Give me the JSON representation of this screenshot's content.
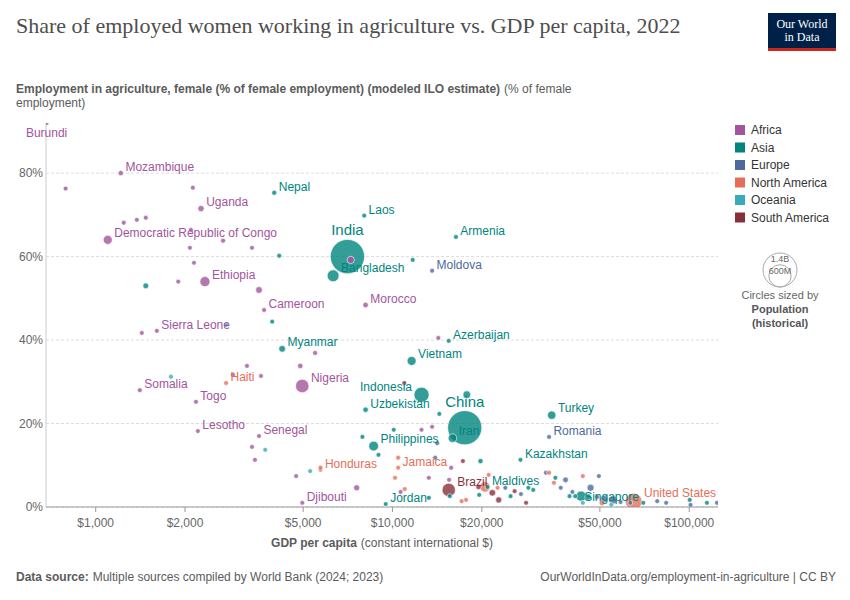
{
  "chart_data": {
    "type": "scatter",
    "title": "Share of employed women working in agriculture vs. GDP per capita, 2022",
    "y_label": "Employment in agriculture, female (% of female employment) (modeled ILO estimate)",
    "y_unit": "(% of female employment)",
    "x_label": "GDP per capita",
    "x_unit": "(constant international $)",
    "source_label": "Data source:",
    "source": "Multiple sources compiled by World Bank (2024; 2023)",
    "url": "OurWorldInData.org/employment-in-agriculture | CC BY",
    "logo": "Our World in Data",
    "log": "x",
    "grid": true,
    "legend": "right",
    "xlim": [
      680,
      125000
    ],
    "ylim": [
      0,
      92
    ],
    "xticks": [
      {
        "value": 1000,
        "label": "$1,000"
      },
      {
        "value": 2000,
        "label": "$2,000"
      },
      {
        "value": 5000,
        "label": "$5,000"
      },
      {
        "value": 10000,
        "label": "$10,000"
      },
      {
        "value": 20000,
        "label": "$20,000"
      },
      {
        "value": 50000,
        "label": "$50,000"
      },
      {
        "value": 100000,
        "label": "$100,000"
      }
    ],
    "yticks": [
      {
        "value": 0,
        "label": "0%"
      },
      {
        "value": 20,
        "label": "20%"
      },
      {
        "value": 40,
        "label": "40%"
      },
      {
        "value": 60,
        "label": "60%"
      },
      {
        "value": 80,
        "label": "80%"
      }
    ],
    "size_legend": {
      "title": "Circles sized by",
      "variable": "Population",
      "note": "(historical)",
      "values": [
        {
          "value": 1400000000,
          "label": "1.4B"
        },
        {
          "value": 600000000,
          "label": "600M"
        }
      ]
    },
    "series": [
      {
        "name": "Africa",
        "color": "#a2559c",
        "x": [
          683,
          1215,
          2264,
          1098,
          2334,
          3693,
          8117,
          1607,
          4966,
          1408,
          2177,
          2210,
          3550,
          4966,
          792,
          1243,
          1376,
          1475,
          2125,
          2093,
          2077,
          2686,
          3363,
          3550,
          1897,
          2144,
          1430,
          3233,
          2900,
          3606,
          5487,
          4890,
          7232,
          14270,
          13600,
          12530,
          13260,
          15770,
          7573,
          3363,
          3440,
          4734,
          10650,
          15520
        ],
        "values": [
          92,
          80,
          71.5,
          64,
          54,
          47.2,
          48.4,
          42.2,
          29,
          28,
          25.2,
          18.2,
          17,
          1,
          76.3,
          68.1,
          68.8,
          69.3,
          76.5,
          66.4,
          62.1,
          63.8,
          62.1,
          52,
          54,
          58.5,
          41.7,
          33.8,
          31.7,
          31.4,
          36.9,
          33.8,
          59.2,
          40.5,
          19.2,
          18.5,
          7,
          9.4,
          4.6,
          14.4,
          11.3,
          7.4,
          3.6,
          6.5
        ],
        "sizes": [
          13000000,
          33000000,
          47000000,
          99000000,
          123000000,
          28000000,
          37000000,
          8600000,
          218000000,
          17600000,
          8800000,
          2300000,
          17300000,
          1100000,
          5500000,
          19000000,
          21000000,
          20000000,
          6000000,
          5000000,
          4000000,
          30000000,
          12000000,
          54000000,
          16000000,
          14000000,
          6000000,
          8000000,
          5000000,
          4000000,
          30000000,
          34000000,
          65000000,
          3000000,
          12000000,
          6000000,
          3000000,
          2000000,
          44000000,
          6000000,
          4000000,
          2000000,
          2500000,
          1400000
        ],
        "labels": [
          "Burundi",
          "Mozambique",
          "Uganda",
          "Democratic Republic of Congo",
          "Ethiopia",
          "Cameroon",
          "Morocco",
          "Sierra Leone",
          "Nigeria",
          "Somalia",
          "Togo",
          "Lesotho",
          "Senegal",
          "Djibouti",
          null,
          null,
          null,
          null,
          null,
          null,
          null,
          null,
          null,
          null,
          null,
          null,
          null,
          null,
          null,
          null,
          null,
          null,
          null,
          null,
          null,
          null,
          null,
          null,
          null,
          null,
          null,
          null,
          null,
          null
        ]
      },
      {
        "name": "Asia",
        "color": "#00847e",
        "x": [
          3996,
          8030,
          7050,
          6310,
          16360,
          4249,
          15470,
          11600,
          12530,
          8117,
          17520,
          15930,
          34400,
          8640,
          27000,
          20900,
          9490,
          70000,
          1475,
          4153,
          3932,
          11700,
          7920,
          8970,
          10100,
          14380,
          17800,
          19800,
          28700,
          35400,
          39500,
          41300,
          43200,
          45600,
          29800,
          25000,
          13260,
          15600,
          19600,
          100400,
          114700
        ],
        "values": [
          75.3,
          69.8,
          60,
          55.4,
          64.7,
          37.9,
          39.8,
          35,
          26.9,
          23.3,
          19,
          16.5,
          22,
          14.6,
          11.3,
          4.8,
          0.7,
          1,
          53,
          60.2,
          44.4,
          59.2,
          16.8,
          12.5,
          18.5,
          22.3,
          26.9,
          11,
          4.6,
          7,
          2.6,
          2.6,
          2.6,
          2.4,
          4.1,
          2.6,
          2.2,
          2.6,
          2.9,
          1.7,
          1
        ],
        "sizes": [
          30500000,
          7500000,
          1420000000,
          171000000,
          2800000,
          54000000,
          10100000,
          98000000,
          275000000,
          35000000,
          1410000000,
          89000000,
          85000000,
          116000000,
          19600000,
          520000,
          11300000,
          5600000,
          40000000,
          6000000,
          8000000,
          4000000,
          2000000,
          3000000,
          9000000,
          5000000,
          72000000,
          33000000,
          5000000,
          4000000,
          3000000,
          4500000,
          125000000,
          51000000,
          7000000,
          2000000,
          5500000,
          17000000,
          6500000,
          2700000,
          4300000
        ],
        "labels": [
          "Nepal",
          "Laos",
          "India",
          "Bangladesh",
          "Armenia",
          "Myanmar",
          "Azerbaijan",
          "Vietnam",
          "Indonesia",
          "Uzbekistan",
          "China",
          "Iran",
          "Turkey",
          "Philippines",
          "Kazakhstan",
          "Maldives",
          "Jordan",
          "Singapore",
          null,
          null,
          null,
          null,
          null,
          null,
          null,
          null,
          null,
          null,
          null,
          null,
          null,
          null,
          null,
          null,
          null,
          null,
          null,
          null,
          null,
          null,
          null
        ]
      },
      {
        "name": "Europe",
        "color": "#4c6a9c",
        "x": [
          13600,
          33700,
          48900,
          51700,
          55300,
          58700,
          63300,
          78000,
          83600,
          101000,
          124000,
          38300,
          40400,
          32900,
          36900,
          46500,
          49600,
          24000,
          27100,
          13930,
          14150
        ],
        "values": [
          56.6,
          16.8,
          2.4,
          1.9,
          1.7,
          1.2,
          1,
          1.4,
          1,
          0.5,
          1,
          6.5,
          3.6,
          8.2,
          4.6,
          4.6,
          7.4,
          4.6,
          3.1,
          11.8,
          15.3
        ],
        "sizes": [
          2500000,
          19000000,
          10000000,
          68000000,
          84000000,
          9000000,
          17000000,
          5000000,
          5500000,
          5000000,
          650000,
          38000000,
          10000000,
          2800000,
          6500000,
          59000000,
          4000000,
          2000000,
          9500000,
          3800000,
          6800000
        ],
        "labels": [
          "Moldova",
          "Romania",
          null,
          null,
          null,
          null,
          null,
          null,
          null,
          null,
          null,
          null,
          null,
          null,
          null,
          null,
          null,
          null,
          null,
          null,
          null
        ]
      },
      {
        "name": "North America",
        "color": "#e56e5a",
        "x": [
          2750,
          5720,
          10450,
          65000,
          5720,
          10450,
          10200,
          11000,
          17100,
          17700,
          21100,
          20500,
          22600,
          33700,
          35000,
          43800,
          50800
        ],
        "values": [
          29.7,
          8.9,
          9.4,
          1.3,
          9.4,
          11.8,
          7,
          4.3,
          1.4,
          1.7,
          7.7,
          4.8,
          4.6,
          8.2,
          5.8,
          7.4,
          1
        ],
        "sizes": [
          11600000,
          10400000,
          2800000,
          335000000,
          6700000,
          1800000,
          11000000,
          5200000,
          4400000,
          11000000,
          3000000,
          128000000,
          1000000,
          500000,
          300000,
          1000000,
          38000000
        ],
        "labels": [
          "Haiti",
          "Honduras",
          "Jamaica",
          "United States",
          null,
          null,
          null,
          null,
          null,
          null,
          null,
          null,
          null,
          null,
          null,
          null,
          null
        ]
      },
      {
        "name": "Oceania",
        "color": "#38aaba",
        "x": [
          1793,
          2750,
          3725,
          5280,
          43800,
          54600
        ],
        "values": [
          31.2,
          43.6,
          13.7,
          8.6,
          1,
          0.5
        ],
        "sizes": [
          700000,
          700000,
          300000,
          900000,
          5100000,
          26000000
        ],
        "labels": [
          null,
          null,
          null,
          null,
          null,
          null
        ]
      },
      {
        "name": "South America",
        "color": "#883039",
        "x": [
          15470,
          10960,
          17270,
          19500,
          21700,
          22800,
          25800,
          28200
        ],
        "values": [
          4.1,
          29.7,
          11,
          4.8,
          3.4,
          1.7,
          3.8,
          1
        ],
        "sizes": [
          215000000,
          12000000,
          7000000,
          34000000,
          52000000,
          46000000,
          3500000,
          19600000
        ],
        "labels": [
          "Brazil",
          null,
          null,
          null,
          null,
          null,
          null,
          null
        ]
      }
    ]
  }
}
